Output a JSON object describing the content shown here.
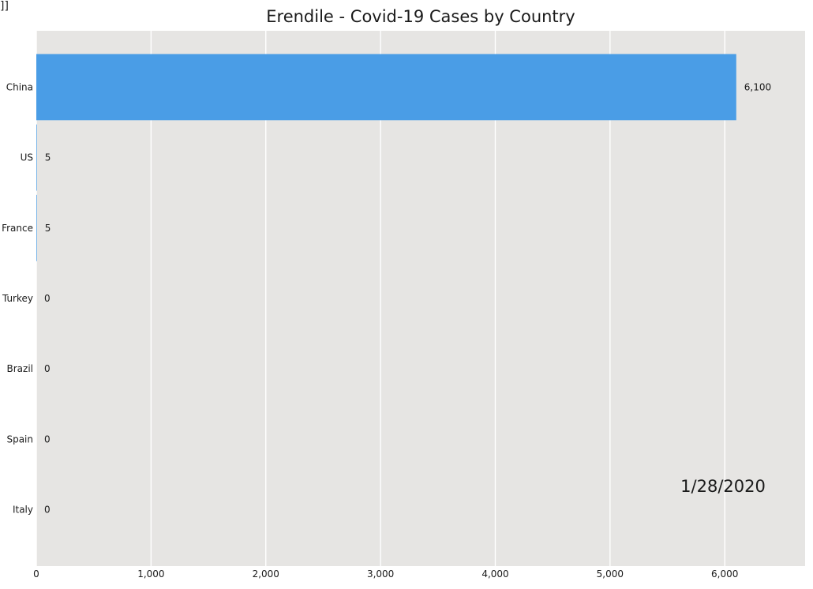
{
  "corner_mark": "]]",
  "chart_data": {
    "type": "bar",
    "orientation": "horizontal",
    "title": "Erendile - Covid-19 Cases by Country",
    "date_label": "1/28/2020",
    "categories": [
      "China",
      "US",
      "France",
      "Turkey",
      "Brazil",
      "Spain",
      "Italy"
    ],
    "values": [
      6100,
      5,
      5,
      0,
      0,
      0,
      0
    ],
    "value_labels": [
      "6,100",
      "5",
      "5",
      "0",
      "0",
      "0",
      "0"
    ],
    "xlim": [
      0,
      6700
    ],
    "xticks": [
      0,
      1000,
      2000,
      3000,
      4000,
      5000,
      6000
    ],
    "xtick_labels": [
      "0",
      "1,000",
      "2,000",
      "3,000",
      "4,000",
      "5,000",
      "6,000"
    ],
    "grid": true,
    "colors": {
      "bar": "#4a9de6",
      "plot_background": "#e6e5e3",
      "grid": "#ffffff",
      "text": "#1a1a1a"
    }
  }
}
